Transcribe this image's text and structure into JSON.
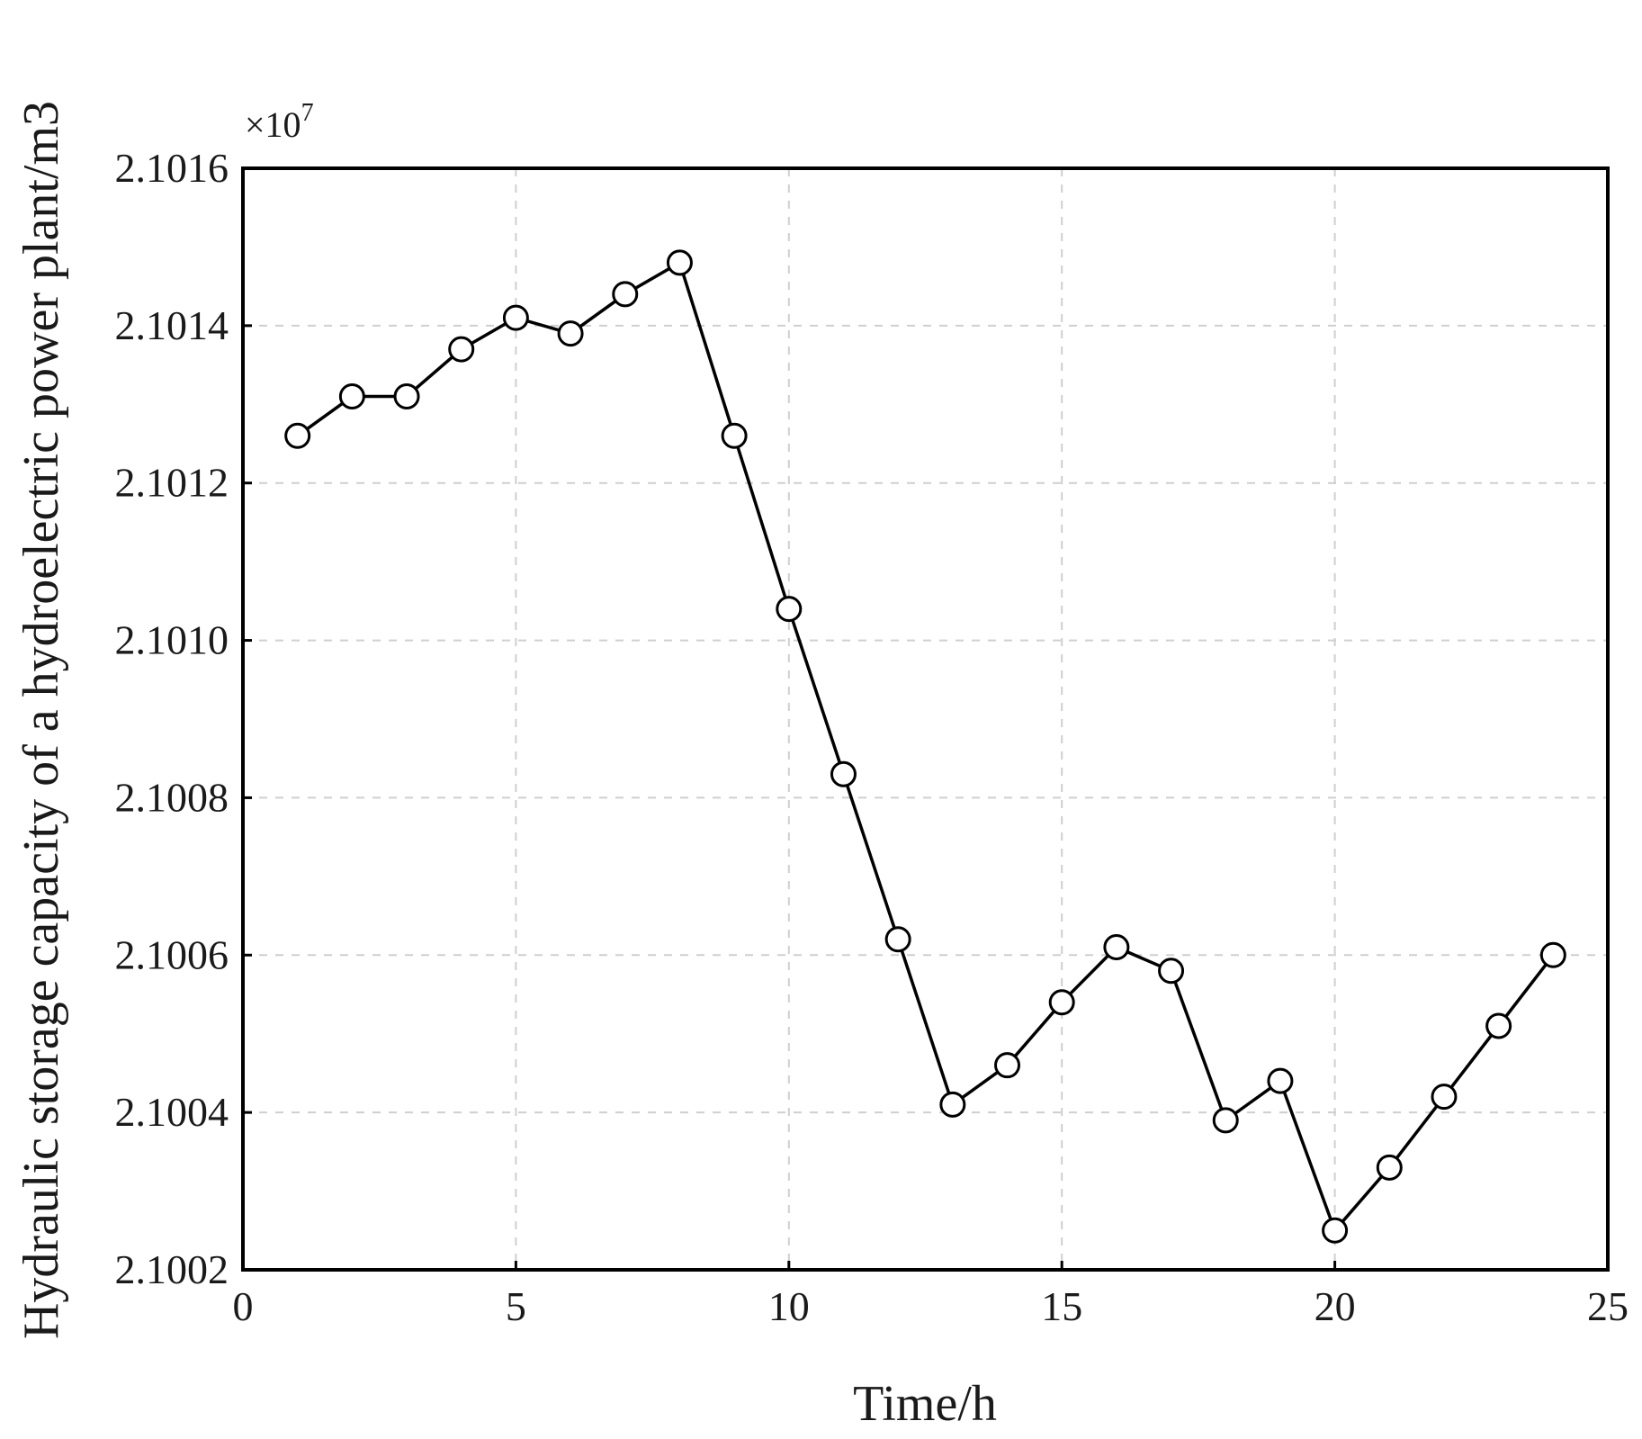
{
  "chart_data": {
    "type": "line",
    "xlabel": "Time/h",
    "ylabel": "Hydraulic storage capacity of a hydroelectric power plant/m3",
    "y_scale_label": "×10",
    "y_scale_exponent": "7",
    "xlim": [
      0,
      25
    ],
    "ylim": [
      2.1002,
      2.1016
    ],
    "x_ticks": [
      "0",
      "5",
      "10",
      "15",
      "20",
      "25"
    ],
    "y_ticks": [
      "2.1002",
      "2.1004",
      "2.1006",
      "2.1008",
      "2.1010",
      "2.1012",
      "2.1014",
      "2.1016"
    ],
    "grid": true,
    "marker": "open-circle",
    "series": [
      {
        "x": [
          1,
          2,
          3,
          4,
          5,
          6,
          7,
          8,
          9,
          10,
          11,
          12,
          13,
          14,
          15,
          16,
          17,
          18,
          19,
          20,
          21,
          22,
          23,
          24
        ],
        "y": [
          2.10126,
          2.10131,
          2.10131,
          2.10137,
          2.10141,
          2.10139,
          2.10144,
          2.10148,
          2.10126,
          2.10104,
          2.10083,
          2.10062,
          2.10041,
          2.10046,
          2.10054,
          2.10061,
          2.10058,
          2.10039,
          2.10044,
          2.10025,
          2.10033,
          2.10042,
          2.10051,
          2.1006
        ]
      }
    ]
  }
}
